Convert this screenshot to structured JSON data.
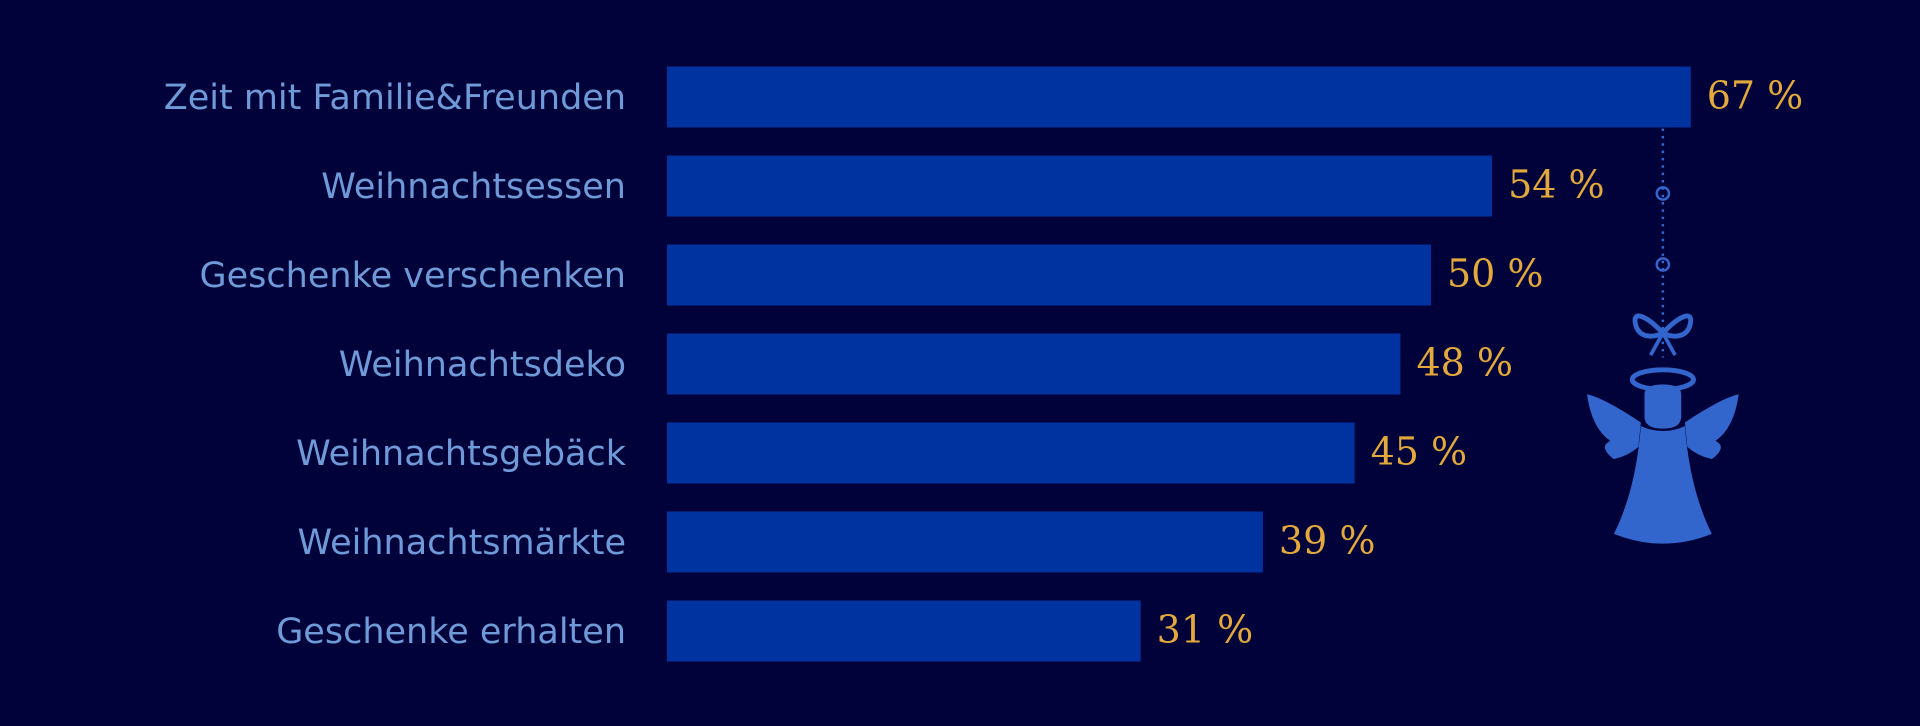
{
  "chart_data": {
    "type": "bar",
    "orientation": "horizontal",
    "categories": [
      "Zeit mit Familie&Freunden",
      "Weihnachtsessen",
      "Geschenke verschenken",
      "Weihnachtsdeko",
      "Weihnachtsgebäck",
      "Weihnachtsmärkte",
      "Geschenke erhalten"
    ],
    "values": [
      67,
      54,
      50,
      48,
      45,
      39,
      31
    ],
    "value_labels": [
      "67 %",
      "54 %",
      "50 %",
      "48 %",
      "45 %",
      "39 %",
      "31 %"
    ],
    "color": "#0033a0",
    "xlim": [
      0,
      100
    ]
  }
}
